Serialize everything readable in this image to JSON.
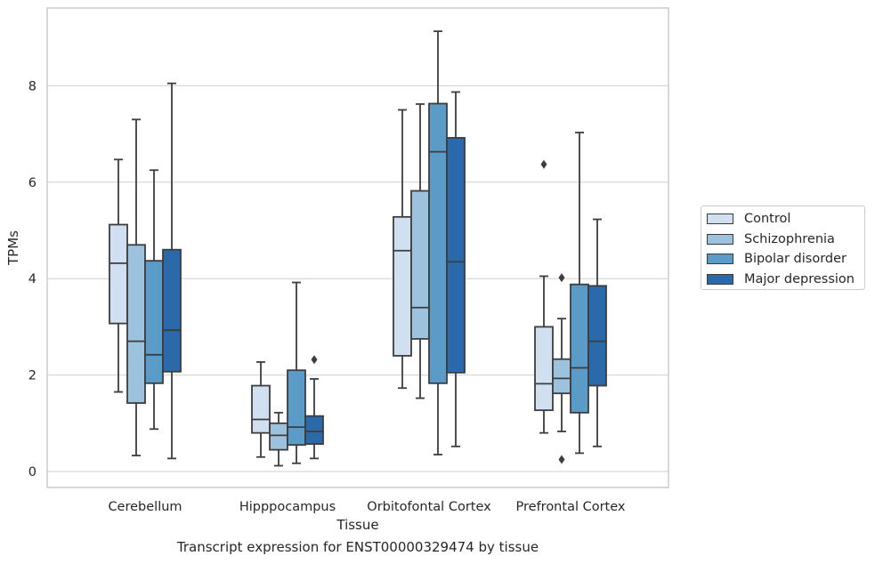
{
  "caption": "Transcript expression for ENST00000329474 by tissue",
  "chart_data": {
    "type": "box",
    "xlabel": "Tissue",
    "ylabel": "TPMs",
    "ylim": [
      -0.35,
      9.65
    ],
    "yticks": [
      0,
      2,
      4,
      6,
      8
    ],
    "grid": "horizontal",
    "legend_position": "right",
    "categories": [
      "Cerebellum",
      "Hipppocampus",
      "Orbitofontal Cortex",
      "Prefrontal Cortex"
    ],
    "series": [
      {
        "name": "Control",
        "color": "#d1e0f0",
        "boxes": [
          {
            "whislo": 1.65,
            "q1": 3.07,
            "med": 4.32,
            "q3": 5.12,
            "whishi": 6.47,
            "fliers": []
          },
          {
            "whislo": 0.3,
            "q1": 0.8,
            "med": 1.08,
            "q3": 1.78,
            "whishi": 2.27,
            "fliers": []
          },
          {
            "whislo": 1.73,
            "q1": 2.4,
            "med": 4.58,
            "q3": 5.28,
            "whishi": 7.5,
            "fliers": []
          },
          {
            "whislo": 0.8,
            "q1": 1.27,
            "med": 1.82,
            "q3": 3.0,
            "whishi": 4.05,
            "fliers": [
              6.37
            ]
          }
        ]
      },
      {
        "name": "Schizophrenia",
        "color": "#9dc2de",
        "boxes": [
          {
            "whislo": 0.33,
            "q1": 1.42,
            "med": 2.7,
            "q3": 4.7,
            "whishi": 7.3,
            "fliers": []
          },
          {
            "whislo": 0.12,
            "q1": 0.45,
            "med": 0.75,
            "q3": 1.0,
            "whishi": 1.22,
            "fliers": []
          },
          {
            "whislo": 1.52,
            "q1": 2.75,
            "med": 3.4,
            "q3": 5.82,
            "whishi": 7.62,
            "fliers": []
          },
          {
            "whislo": 0.83,
            "q1": 1.62,
            "med": 1.93,
            "q3": 2.33,
            "whishi": 3.17,
            "fliers": [
              4.02,
              0.25
            ]
          }
        ]
      },
      {
        "name": "Bipolar disorder",
        "color": "#5a9bc8",
        "boxes": [
          {
            "whislo": 0.88,
            "q1": 1.83,
            "med": 2.42,
            "q3": 4.37,
            "whishi": 6.25,
            "fliers": []
          },
          {
            "whislo": 0.17,
            "q1": 0.55,
            "med": 0.92,
            "q3": 2.1,
            "whishi": 3.92,
            "fliers": []
          },
          {
            "whislo": 0.35,
            "q1": 1.83,
            "med": 6.63,
            "q3": 7.63,
            "whishi": 9.13,
            "fliers": []
          },
          {
            "whislo": 0.38,
            "q1": 1.22,
            "med": 2.15,
            "q3": 3.88,
            "whishi": 7.03,
            "fliers": []
          }
        ]
      },
      {
        "name": "Major depression",
        "color": "#2a6aab",
        "boxes": [
          {
            "whislo": 0.27,
            "q1": 2.07,
            "med": 2.93,
            "q3": 4.6,
            "whishi": 8.05,
            "fliers": []
          },
          {
            "whislo": 0.27,
            "q1": 0.57,
            "med": 0.83,
            "q3": 1.15,
            "whishi": 1.92,
            "fliers": [
              2.32
            ]
          },
          {
            "whislo": 0.52,
            "q1": 2.05,
            "med": 4.35,
            "q3": 6.92,
            "whishi": 7.87,
            "fliers": []
          },
          {
            "whislo": 0.52,
            "q1": 1.78,
            "med": 2.7,
            "q3": 3.85,
            "whishi": 5.23,
            "fliers": []
          }
        ]
      }
    ]
  }
}
